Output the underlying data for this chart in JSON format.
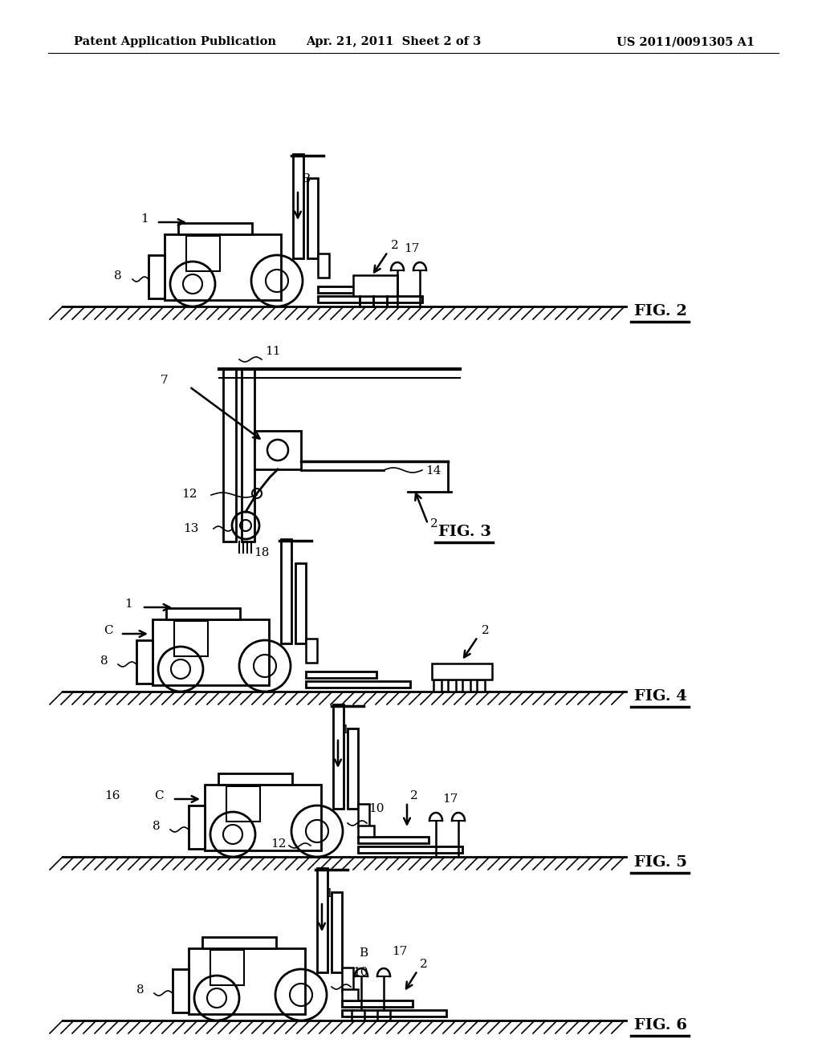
{
  "background_color": "#ffffff",
  "header_left": "Patent Application Publication",
  "header_center": "Apr. 21, 2011  Sheet 2 of 3",
  "header_right": "US 2011/0091305 A1",
  "line_color": "#000000",
  "text_color": "#000000"
}
